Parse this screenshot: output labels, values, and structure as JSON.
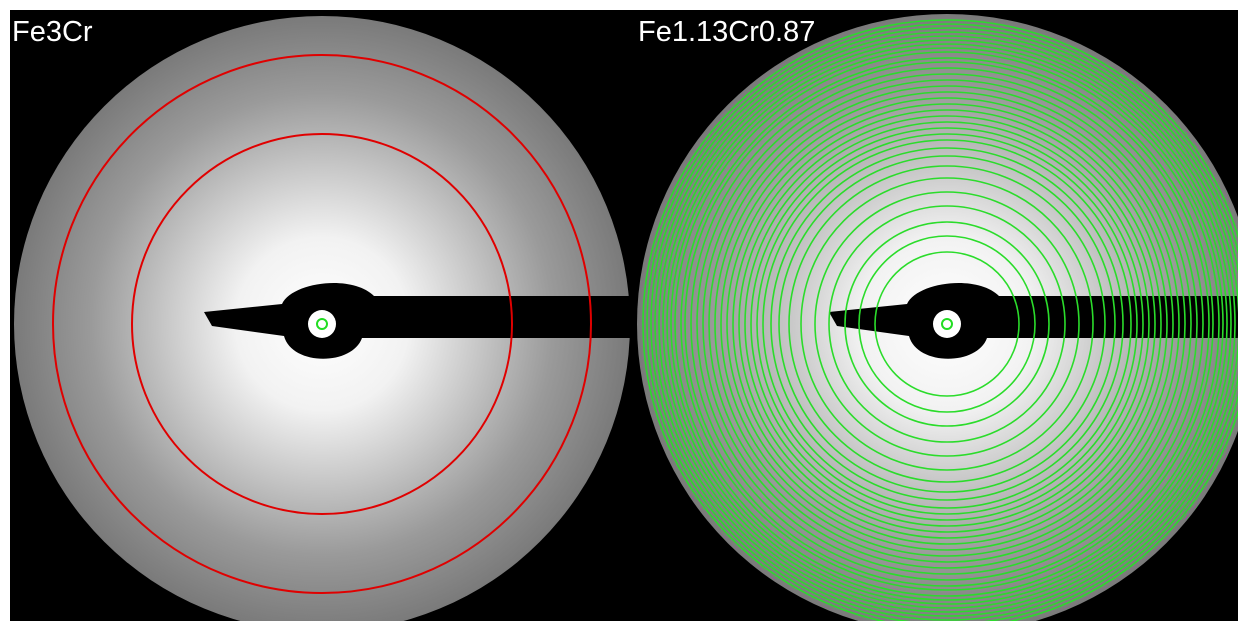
{
  "panels": [
    {
      "label": "Fe3Cr"
    },
    {
      "label": "Fe1.13Cr0.87"
    }
  ]
}
